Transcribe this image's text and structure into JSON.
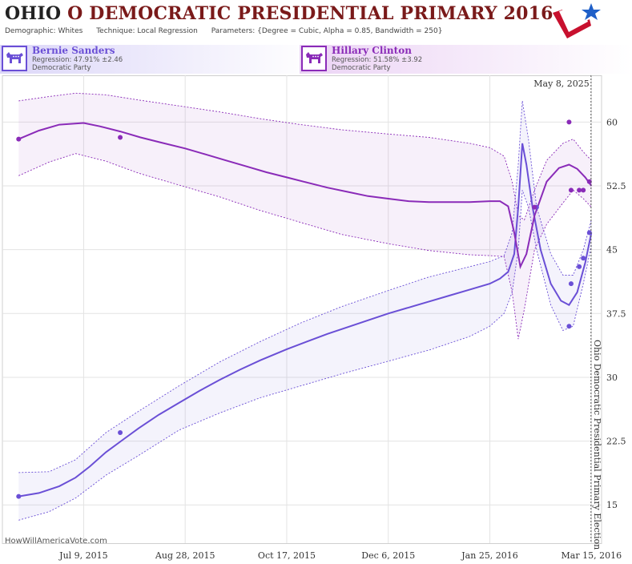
{
  "header": {
    "state": "OHIO",
    "title_rest": "O DEMOCRATIC PRESIDENTIAL PRIMARY 2016",
    "demographic_label": "Demographic:",
    "demographic_value": "Whites",
    "technique_label": "Technique:",
    "technique_value": "Local Regression",
    "parameters_label": "Parameters:",
    "parameters_value": "{Degree = Cubic, Alpha = 0.85, Bandwidth = 250}"
  },
  "candidates": [
    {
      "name": "Bernie Sanders",
      "regression": "Regression: 47.91% ±2.46",
      "party": "Democratic Party",
      "color": "#6a4fd6",
      "icon": "democratic-donkey-icon"
    },
    {
      "name": "Hillary Clinton",
      "regression": "Regression: 51.58% ±3.92",
      "party": "Democratic Party",
      "color": "#8a2bb8",
      "icon": "democratic-donkey-icon"
    }
  ],
  "watermark": "HowWillAmericaVote.com",
  "chart_data": {
    "type": "line",
    "x_type": "date",
    "xlim": [
      "2015-05-30",
      "2016-03-20"
    ],
    "ylim": [
      10.5,
      65.5
    ],
    "x_ticks": [
      {
        "date": "2015-07-09",
        "label": "Jul 9, 2015"
      },
      {
        "date": "2015-08-28",
        "label": "Aug 28, 2015"
      },
      {
        "date": "2015-10-17",
        "label": "Oct 17, 2015"
      },
      {
        "date": "2015-12-06",
        "label": "Dec 6, 2015"
      },
      {
        "date": "2016-01-25",
        "label": "Jan 25, 2016"
      },
      {
        "date": "2016-03-15",
        "label": "Mar 15, 2016"
      }
    ],
    "y_ticks": [
      15,
      22.5,
      30,
      37.5,
      45,
      52.5,
      60
    ],
    "y_tick_labels": [
      "15",
      "22.5",
      "30",
      "37.5",
      "45",
      "52.5",
      "60"
    ],
    "grid": true,
    "date_marker": {
      "date": "2016-03-15",
      "label": "May 8, 2025"
    },
    "event_marker": {
      "date": "2016-03-15",
      "label": "Ohio Democratic Presidential Primary Election"
    },
    "series": [
      {
        "name": "Bernie Sanders",
        "color": "#6a4fd6",
        "line": [
          [
            "2015-06-07",
            16
          ],
          [
            "2015-06-17",
            16.4
          ],
          [
            "2015-06-27",
            17.2
          ],
          [
            "2015-07-05",
            18.2
          ],
          [
            "2015-07-12",
            19.5
          ],
          [
            "2015-07-20",
            21.2
          ],
          [
            "2015-07-28",
            22.6
          ],
          [
            "2015-08-05",
            24
          ],
          [
            "2015-08-15",
            25.6
          ],
          [
            "2015-08-25",
            27
          ],
          [
            "2015-09-04",
            28.4
          ],
          [
            "2015-09-14",
            29.7
          ],
          [
            "2015-09-24",
            30.9
          ],
          [
            "2015-10-04",
            32
          ],
          [
            "2015-10-17",
            33.3
          ],
          [
            "2015-10-27",
            34.2
          ],
          [
            "2015-11-06",
            35.1
          ],
          [
            "2015-11-16",
            35.9
          ],
          [
            "2015-11-26",
            36.7
          ],
          [
            "2015-12-06",
            37.5
          ],
          [
            "2015-12-16",
            38.2
          ],
          [
            "2015-12-26",
            38.9
          ],
          [
            "2016-01-05",
            39.6
          ],
          [
            "2016-01-15",
            40.3
          ],
          [
            "2016-01-25",
            41
          ],
          [
            "2016-01-30",
            41.6
          ],
          [
            "2016-02-03",
            42.4
          ],
          [
            "2016-02-06",
            44.5
          ],
          [
            "2016-02-08",
            50
          ],
          [
            "2016-02-10",
            57.5
          ],
          [
            "2016-02-12",
            55
          ],
          [
            "2016-02-15",
            50
          ],
          [
            "2016-02-19",
            45
          ],
          [
            "2016-02-24",
            41
          ],
          [
            "2016-02-29",
            39
          ],
          [
            "2016-03-04",
            38.5
          ],
          [
            "2016-03-08",
            40
          ],
          [
            "2016-03-12",
            43.5
          ],
          [
            "2016-03-15",
            47
          ]
        ],
        "upper": [
          [
            "2015-06-07",
            18.8
          ],
          [
            "2015-06-22",
            18.9
          ],
          [
            "2015-07-05",
            20.3
          ],
          [
            "2015-07-20",
            23.5
          ],
          [
            "2015-08-05",
            26
          ],
          [
            "2015-08-25",
            29
          ],
          [
            "2015-09-14",
            31.8
          ],
          [
            "2015-10-04",
            34.2
          ],
          [
            "2015-10-24",
            36.4
          ],
          [
            "2015-11-13",
            38.3
          ],
          [
            "2015-12-06",
            40.2
          ],
          [
            "2015-12-26",
            41.8
          ],
          [
            "2016-01-15",
            43
          ],
          [
            "2016-01-25",
            43.6
          ],
          [
            "2016-02-01",
            44.3
          ],
          [
            "2016-02-05",
            47
          ],
          [
            "2016-02-08",
            55
          ],
          [
            "2016-02-10",
            62.5
          ],
          [
            "2016-02-13",
            58
          ],
          [
            "2016-02-17",
            50
          ],
          [
            "2016-02-24",
            44.5
          ],
          [
            "2016-03-01",
            42
          ],
          [
            "2016-03-06",
            42
          ],
          [
            "2016-03-11",
            45
          ],
          [
            "2016-03-15",
            48.5
          ]
        ],
        "lower": [
          [
            "2015-06-07",
            13.2
          ],
          [
            "2015-06-22",
            14.2
          ],
          [
            "2015-07-05",
            15.8
          ],
          [
            "2015-07-20",
            18.5
          ],
          [
            "2015-08-05",
            20.8
          ],
          [
            "2015-08-25",
            23.8
          ],
          [
            "2015-09-14",
            25.8
          ],
          [
            "2015-10-04",
            27.6
          ],
          [
            "2015-10-24",
            29
          ],
          [
            "2015-11-13",
            30.4
          ],
          [
            "2015-12-06",
            31.9
          ],
          [
            "2015-12-26",
            33.2
          ],
          [
            "2016-01-15",
            34.8
          ],
          [
            "2016-01-25",
            36
          ],
          [
            "2016-02-01",
            37.5
          ],
          [
            "2016-02-05",
            40
          ],
          [
            "2016-02-08",
            45
          ],
          [
            "2016-02-10",
            52
          ],
          [
            "2016-02-13",
            50
          ],
          [
            "2016-02-17",
            45
          ],
          [
            "2016-02-24",
            38.5
          ],
          [
            "2016-03-01",
            35.5
          ],
          [
            "2016-03-06",
            36
          ],
          [
            "2016-03-11",
            41
          ],
          [
            "2016-03-15",
            45.5
          ]
        ],
        "points": [
          [
            "2015-06-07",
            16
          ],
          [
            "2015-07-27",
            23.5
          ],
          [
            "2016-02-17",
            50
          ],
          [
            "2016-03-04",
            36
          ],
          [
            "2016-03-05",
            41
          ],
          [
            "2016-03-09",
            43
          ],
          [
            "2016-03-11",
            44
          ],
          [
            "2016-03-14",
            47
          ]
        ]
      },
      {
        "name": "Hillary Clinton",
        "color": "#8a2bb8",
        "line": [
          [
            "2015-06-07",
            58
          ],
          [
            "2015-06-17",
            59
          ],
          [
            "2015-06-27",
            59.7
          ],
          [
            "2015-07-09",
            59.9
          ],
          [
            "2015-07-17",
            59.5
          ],
          [
            "2015-07-27",
            58.9
          ],
          [
            "2015-08-06",
            58.2
          ],
          [
            "2015-08-16",
            57.6
          ],
          [
            "2015-08-28",
            56.9
          ],
          [
            "2015-09-07",
            56.2
          ],
          [
            "2015-09-17",
            55.5
          ],
          [
            "2015-09-27",
            54.8
          ],
          [
            "2015-10-07",
            54.1
          ],
          [
            "2015-10-17",
            53.5
          ],
          [
            "2015-10-27",
            52.9
          ],
          [
            "2015-11-06",
            52.3
          ],
          [
            "2015-11-16",
            51.8
          ],
          [
            "2015-11-26",
            51.3
          ],
          [
            "2015-12-06",
            51
          ],
          [
            "2015-12-16",
            50.7
          ],
          [
            "2015-12-26",
            50.6
          ],
          [
            "2016-01-05",
            50.6
          ],
          [
            "2016-01-15",
            50.6
          ],
          [
            "2016-01-25",
            50.7
          ],
          [
            "2016-01-30",
            50.7
          ],
          [
            "2016-02-03",
            50.1
          ],
          [
            "2016-02-06",
            47
          ],
          [
            "2016-02-09",
            43
          ],
          [
            "2016-02-12",
            44.5
          ],
          [
            "2016-02-16",
            49
          ],
          [
            "2016-02-22",
            53
          ],
          [
            "2016-02-28",
            54.6
          ],
          [
            "2016-03-04",
            55
          ],
          [
            "2016-03-08",
            54.5
          ],
          [
            "2016-03-12",
            53.5
          ],
          [
            "2016-03-15",
            52.5
          ]
        ],
        "upper": [
          [
            "2015-06-07",
            62.5
          ],
          [
            "2015-06-22",
            63
          ],
          [
            "2015-07-05",
            63.4
          ],
          [
            "2015-07-20",
            63.2
          ],
          [
            "2015-08-05",
            62.6
          ],
          [
            "2015-08-25",
            61.9
          ],
          [
            "2015-09-14",
            61.2
          ],
          [
            "2015-10-04",
            60.4
          ],
          [
            "2015-10-24",
            59.7
          ],
          [
            "2015-11-13",
            59.1
          ],
          [
            "2015-12-06",
            58.6
          ],
          [
            "2015-12-26",
            58.2
          ],
          [
            "2016-01-15",
            57.5
          ],
          [
            "2016-01-25",
            57
          ],
          [
            "2016-02-01",
            56
          ],
          [
            "2016-02-05",
            53
          ],
          [
            "2016-02-08",
            49
          ],
          [
            "2016-02-11",
            48.5
          ],
          [
            "2016-02-16",
            52
          ],
          [
            "2016-02-22",
            55.5
          ],
          [
            "2016-03-01",
            57.5
          ],
          [
            "2016-03-06",
            58
          ],
          [
            "2016-03-11",
            56.5
          ],
          [
            "2016-03-15",
            55.5
          ]
        ],
        "lower": [
          [
            "2015-06-07",
            53.7
          ],
          [
            "2015-06-22",
            55.3
          ],
          [
            "2015-07-05",
            56.3
          ],
          [
            "2015-07-20",
            55.4
          ],
          [
            "2015-08-05",
            54
          ],
          [
            "2015-08-25",
            52.6
          ],
          [
            "2015-09-14",
            51.2
          ],
          [
            "2015-10-04",
            49.6
          ],
          [
            "2015-10-24",
            48.2
          ],
          [
            "2015-11-13",
            46.8
          ],
          [
            "2015-12-06",
            45.7
          ],
          [
            "2015-12-26",
            44.9
          ],
          [
            "2016-01-15",
            44.4
          ],
          [
            "2016-01-25",
            44.3
          ],
          [
            "2016-02-01",
            44.2
          ],
          [
            "2016-02-05",
            40
          ],
          [
            "2016-02-08",
            34.5
          ],
          [
            "2016-02-11",
            38
          ],
          [
            "2016-02-16",
            45
          ],
          [
            "2016-02-22",
            48
          ],
          [
            "2016-03-01",
            50.5
          ],
          [
            "2016-03-06",
            52
          ],
          [
            "2016-03-11",
            51
          ],
          [
            "2016-03-15",
            50
          ]
        ],
        "points": [
          [
            "2015-06-07",
            58
          ],
          [
            "2015-07-27",
            58.2
          ],
          [
            "2016-02-16",
            50
          ],
          [
            "2016-03-04",
            60
          ],
          [
            "2016-03-05",
            52
          ],
          [
            "2016-03-09",
            52
          ],
          [
            "2016-03-11",
            52
          ],
          [
            "2016-03-14",
            53
          ]
        ]
      }
    ]
  }
}
